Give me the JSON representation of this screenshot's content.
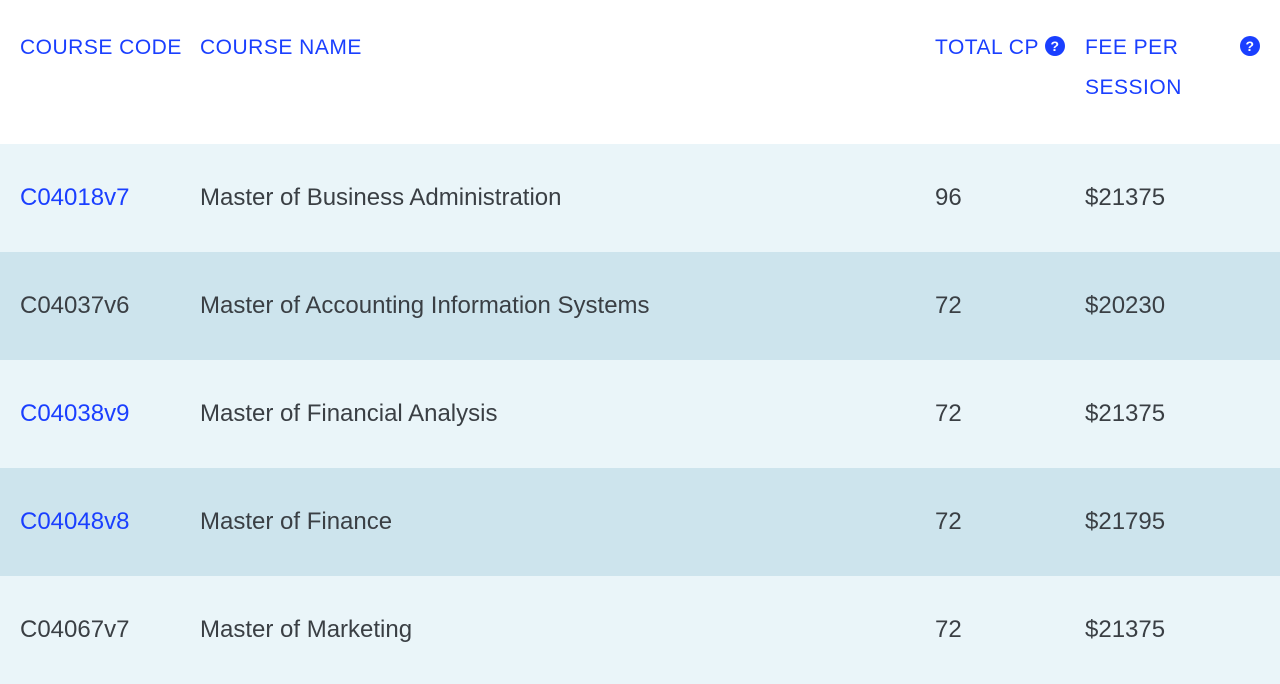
{
  "table": {
    "headers": {
      "code": "COURSE CODE",
      "name": "COURSE NAME",
      "cp": "TOTAL CP",
      "fee": "FEE PER SESSION"
    },
    "rows": [
      {
        "code": "C04018v7",
        "code_is_link": true,
        "name": "Master of Business Administration",
        "cp": "96",
        "fee": "$21375",
        "row_bg": "light"
      },
      {
        "code": "C04037v6",
        "code_is_link": false,
        "name": "Master of Accounting Information Systems",
        "cp": "72",
        "fee": "$20230",
        "row_bg": "dark"
      },
      {
        "code": "C04038v9",
        "code_is_link": true,
        "name": "Master of Financial Analysis",
        "cp": "72",
        "fee": "$21375",
        "row_bg": "light"
      },
      {
        "code": "C04048v8",
        "code_is_link": true,
        "name": "Master of Finance",
        "cp": "72",
        "fee": "$21795",
        "row_bg": "dark"
      },
      {
        "code": "C04067v7",
        "code_is_link": false,
        "name": "Master of Marketing",
        "cp": "72",
        "fee": "$21375",
        "row_bg": "light"
      }
    ],
    "styling": {
      "header_color": "#1a3fff",
      "header_fontsize": 21,
      "data_fontsize": 24,
      "data_color": "#3a3f44",
      "link_color": "#1a3fff",
      "row_light_bg": "#eaf5f9",
      "row_dark_bg": "#cde4ed",
      "help_icon_bg": "#1a3fff",
      "help_icon_fg": "#ffffff"
    }
  }
}
